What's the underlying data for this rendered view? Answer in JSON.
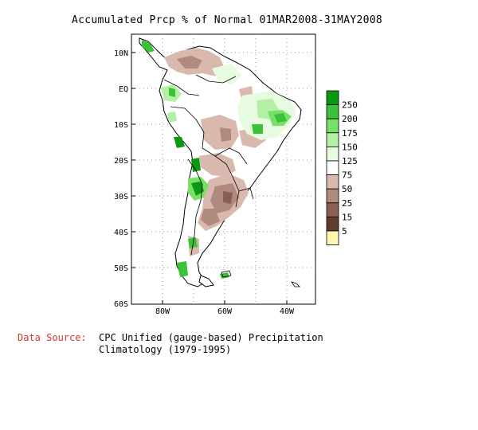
{
  "title": "Accumulated Prcp % of Normal 01MAR2008-31MAY2008",
  "axes": {
    "lat_ticks": [
      "10N",
      "EQ",
      "10S",
      "20S",
      "30S",
      "40S",
      "50S",
      "60S"
    ],
    "lon_ticks": [
      "80W",
      "60W",
      "40W"
    ]
  },
  "legend": {
    "labels": [
      "250",
      "200",
      "175",
      "150",
      "125",
      "75",
      "50",
      "25",
      "15",
      "5"
    ],
    "colors": [
      "#0a9a12",
      "#3cc23a",
      "#78e066",
      "#b4f0a4",
      "#e6fbe0",
      "#ffffff",
      "#d9b9ae",
      "#b08a7e",
      "#8a6054",
      "#5e3c30",
      "#fff7b0"
    ]
  },
  "source": {
    "label": "Data Source:",
    "line1": "CPC Unified (gauge-based) Precipitation",
    "line2": "Climatology (1979-1995)"
  }
}
